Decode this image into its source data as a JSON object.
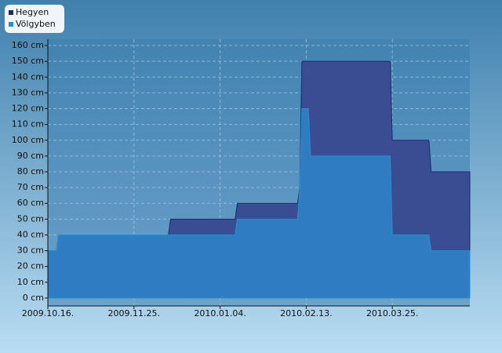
{
  "chart_data": {
    "type": "area",
    "x": [
      "2009-10-16",
      "2009-10-20",
      "2009-10-21",
      "2009-12-11",
      "2009-12-12",
      "2010-01-11",
      "2010-01-12",
      "2010-02-09",
      "2010-02-10",
      "2010-02-11",
      "2010-02-14",
      "2010-02-15",
      "2010-03-24",
      "2010-03-25",
      "2010-04-11",
      "2010-04-12",
      "2010-04-30"
    ],
    "series": [
      {
        "name": "Hegyen",
        "color": "#1b2a6b",
        "fill": "#3a4d92",
        "values": [
          30,
          30,
          40,
          40,
          50,
          50,
          60,
          60,
          70,
          150,
          150,
          150,
          150,
          100,
          100,
          80,
          80
        ]
      },
      {
        "name": "Völgyben",
        "color": "#2a8fd2",
        "fill": "#2f7cc2",
        "values": [
          30,
          30,
          40,
          40,
          40,
          40,
          50,
          50,
          70,
          120,
          120,
          90,
          90,
          40,
          40,
          30,
          30
        ]
      }
    ],
    "xlim": [
      "2009-10-16",
      "2010-04-30"
    ],
    "xticks": [
      {
        "value": "2009-10-16",
        "label": "2009.10.16."
      },
      {
        "value": "2009-11-25",
        "label": "2009.11.25."
      },
      {
        "value": "2010-01-04",
        "label": "2010.01.04."
      },
      {
        "value": "2010-02-13",
        "label": "2010.02.13."
      },
      {
        "value": "2010-03-25",
        "label": "2010.03.25."
      }
    ],
    "ylim": [
      -5,
      164
    ],
    "yticks": [
      {
        "value": 0,
        "label": "0 cm"
      },
      {
        "value": 10,
        "label": "10 cm"
      },
      {
        "value": 20,
        "label": "20 cm"
      },
      {
        "value": 30,
        "label": "30 cm"
      },
      {
        "value": 40,
        "label": "40 cm"
      },
      {
        "value": 50,
        "label": "50 cm"
      },
      {
        "value": 60,
        "label": "60 cm"
      },
      {
        "value": 70,
        "label": "70 cm"
      },
      {
        "value": 80,
        "label": "80 cm"
      },
      {
        "value": 90,
        "label": "90 cm"
      },
      {
        "value": 100,
        "label": "100 cm"
      },
      {
        "value": 110,
        "label": "110 cm"
      },
      {
        "value": 120,
        "label": "120 cm"
      },
      {
        "value": 130,
        "label": "130 cm"
      },
      {
        "value": 140,
        "label": "140 cm"
      },
      {
        "value": 150,
        "label": "150 cm"
      },
      {
        "value": 160,
        "label": "160 cm"
      }
    ],
    "grid": true,
    "legend": "upper left"
  }
}
